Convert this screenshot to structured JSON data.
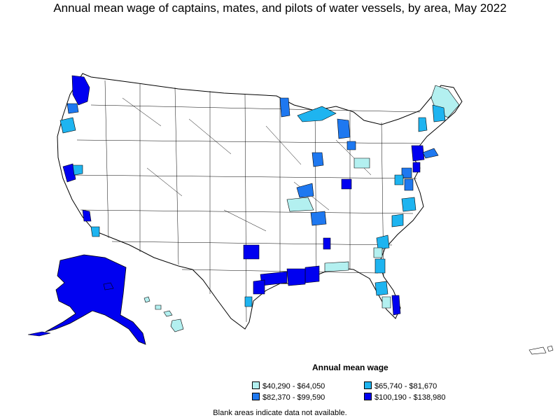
{
  "title": "Annual mean wage of captains, mates, and pilots of water vessels, by area, May 2022",
  "legend": {
    "title": "Annual mean wage",
    "items": [
      {
        "label": "$40,290 - $64,050",
        "color": "#b3f0f0"
      },
      {
        "label": "$65,740 - $81,670",
        "color": "#1eb4f0"
      },
      {
        "label": "$82,370 - $99,590",
        "color": "#1e78f0"
      },
      {
        "label": "$100,190 - $138,980",
        "color": "#0000f0"
      }
    ]
  },
  "footnote": "Blank areas indicate data not available.",
  "colors": {
    "bin1": "#b3f0f0",
    "bin2": "#1eb4f0",
    "bin3": "#1e78f0",
    "bin4": "#0000f0",
    "outline": "#000000",
    "blank": "#ffffff"
  }
}
